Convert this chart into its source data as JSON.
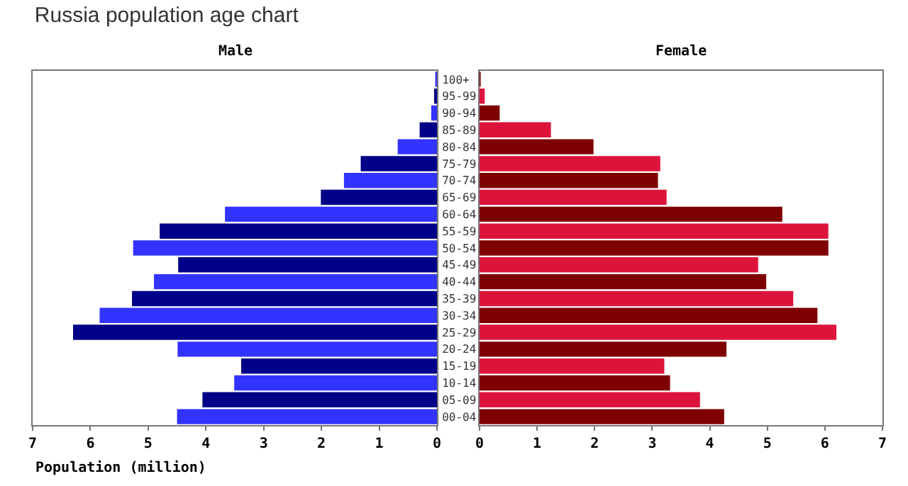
{
  "chart_data": [
    {
      "type": "bar",
      "orientation": "horizontal",
      "title": "Russia population age chart",
      "subtitle": "Male",
      "xlabel": "Population (million)",
      "categories": [
        "100+",
        "95-99",
        "90-94",
        "85-89",
        "80-84",
        "75-79",
        "70-74",
        "65-69",
        "60-64",
        "55-59",
        "50-54",
        "45-49",
        "40-44",
        "35-39",
        "30-34",
        "25-29",
        "20-24",
        "15-19",
        "10-14",
        "05-09",
        "00-04"
      ],
      "values": [
        0.03,
        0.05,
        0.1,
        0.3,
        0.68,
        1.32,
        1.61,
        2.01,
        3.67,
        4.8,
        5.26,
        4.48,
        4.9,
        5.28,
        5.84,
        6.3,
        4.49,
        3.39,
        3.51,
        4.06,
        4.5
      ],
      "colors": [
        "#3333ff",
        "#000088",
        "#3333ff",
        "#000088",
        "#3333ff",
        "#000088",
        "#3333ff",
        "#000088",
        "#3333ff",
        "#000088",
        "#3333ff",
        "#000088",
        "#3333ff",
        "#000088",
        "#3333ff",
        "#000088",
        "#3333ff",
        "#000088",
        "#3333ff",
        "#000088",
        "#3333ff"
      ],
      "xlim": [
        7,
        0
      ],
      "xticks": [
        7,
        6,
        5,
        4,
        3,
        2,
        1,
        0
      ]
    },
    {
      "type": "bar",
      "orientation": "horizontal",
      "title": "Female",
      "tick_labels": "x",
      "categories": [
        null,
        null,
        null,
        null,
        null,
        null,
        null,
        null,
        null,
        null,
        null,
        null,
        null,
        null,
        null,
        null,
        null,
        null,
        null,
        null,
        null
      ],
      "values": [
        0.02,
        0.09,
        0.35,
        1.24,
        1.98,
        3.14,
        3.1,
        3.25,
        5.26,
        6.06,
        6.06,
        4.84,
        4.98,
        5.45,
        5.87,
        6.2,
        4.29,
        3.21,
        3.31,
        3.83,
        4.25
      ],
      "colors": [
        "#7f0000",
        "#dc143c",
        "#7f0000",
        "#dc143c",
        "#7f0000",
        "#dc143c",
        "#7f0000",
        "#dc143c",
        "#7f0000",
        "#dc143c",
        "#7f0000",
        "#dc143c",
        "#7f0000",
        "#dc143c",
        "#7f0000",
        "#dc143c",
        "#7f0000",
        "#dc143c",
        "#7f0000",
        "#dc143c",
        "#7f0000"
      ],
      "xlim": [
        0,
        7
      ],
      "xticks": [
        0,
        1,
        2,
        3,
        4,
        5,
        6,
        7
      ]
    }
  ]
}
